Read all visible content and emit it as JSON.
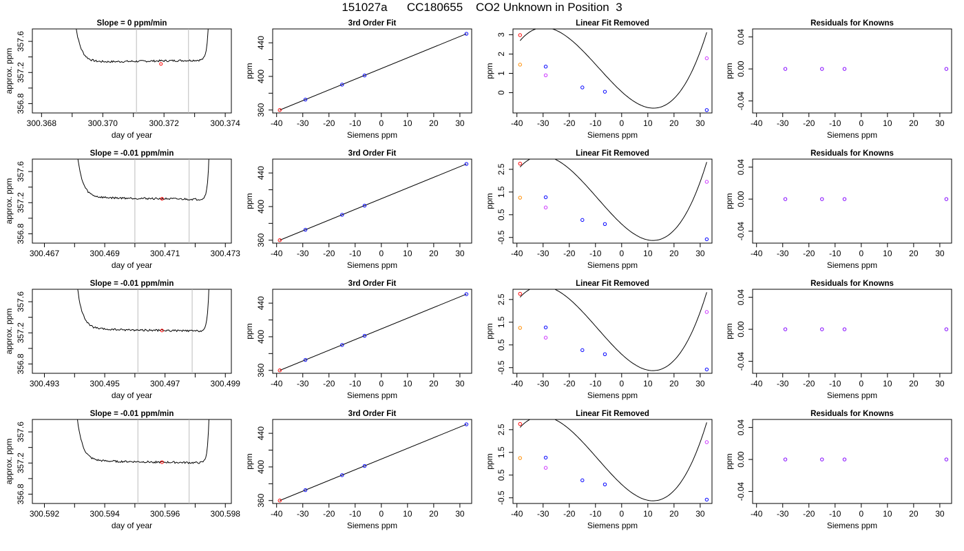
{
  "page": {
    "title": "151027a      CC180655    CO2 Unknown in Position  3"
  },
  "chart_data": [
    {
      "type": "line",
      "title": "Slope =  0  ppm/min",
      "xlabel": "day of year",
      "ylabel": "approx. ppm",
      "xlim": [
        300.3677,
        300.3742
      ],
      "ylim": [
        356.68,
        357.76
      ],
      "xticks": [
        "300.368",
        "300.369",
        "300.370",
        "300.371",
        "300.372",
        "300.373",
        "300.374"
      ],
      "xtick_labels": [
        "300.368",
        "",
        "300.370",
        "",
        "300.372",
        "",
        "300.374"
      ],
      "yticks": [
        "356.8",
        "357.0",
        "357.2",
        "357.4",
        "357.6"
      ],
      "ytick_labels": [
        "356.8",
        "",
        "357.2",
        "",
        "357.6"
      ],
      "vlines": [
        300.3711,
        300.3728
      ],
      "trace": {
        "start": 300.369,
        "end": 300.3735,
        "plateau": 357.33,
        "step": 0.03
      },
      "marker": {
        "x": 300.3719,
        "y": 357.31,
        "color": "#ff0000"
      }
    },
    {
      "type": "scatter",
      "title": "3rd Order Fit",
      "xlabel": "Siemens ppm",
      "ylabel": "ppm",
      "xlim": [
        -41.5,
        34.5
      ],
      "ylim": [
        356.5,
        456.5
      ],
      "xticks": [
        "-40",
        "-30",
        "-20",
        "-10",
        "0",
        "10",
        "20",
        "30"
      ],
      "yticks": [
        "360",
        "380",
        "400",
        "420",
        "440"
      ],
      "ytick_labels": [
        "360",
        "",
        "400",
        "",
        "440"
      ],
      "fit_line": [
        [
          -38.8,
          360.0
        ],
        [
          32.5,
          450.7
        ]
      ],
      "points": [
        {
          "x": -38.8,
          "y": 360.0,
          "color": "#ff0000"
        },
        {
          "x": -29,
          "y": 372.4,
          "color": "#0000ff"
        },
        {
          "x": -15,
          "y": 390.2,
          "color": "#0000ff"
        },
        {
          "x": -6.4,
          "y": 401.1,
          "color": "#0000ff"
        },
        {
          "x": 32.5,
          "y": 450.7,
          "color": "#0000ff"
        }
      ]
    },
    {
      "type": "scatter",
      "title": "Linear Fit Removed",
      "xlabel": "Siemens ppm",
      "ylabel": "ppm",
      "xlim": [
        -41.5,
        34.5
      ],
      "ylim": [
        -1.05,
        3.3
      ],
      "xticks": [
        "-40",
        "-30",
        "-20",
        "-10",
        "0",
        "10",
        "20",
        "30"
      ],
      "yticks": [
        "0",
        "1",
        "2",
        "3"
      ],
      "curve": {
        "coef": [
          0.05,
          -0.1233,
          0.003,
          0.000114
        ],
        "from": -38.8,
        "to": 32.5
      },
      "points": [
        {
          "x": -38.8,
          "y": 2.98,
          "color": "#ff0000"
        },
        {
          "x": -38.8,
          "y": 1.45,
          "color": "#ff8c00"
        },
        {
          "x": -29,
          "y": 1.35,
          "color": "#0000ff"
        },
        {
          "x": -29,
          "y": 0.9,
          "color": "#cc33ff"
        },
        {
          "x": -15,
          "y": 0.27,
          "color": "#0000ff"
        },
        {
          "x": -6.4,
          "y": 0.05,
          "color": "#0000ff"
        },
        {
          "x": 32.5,
          "y": -0.9,
          "color": "#0000ff"
        },
        {
          "x": 32.5,
          "y": 1.78,
          "color": "#cc33ff"
        }
      ]
    },
    {
      "type": "scatter",
      "title": "Residuals for Knowns",
      "xlabel": "Siemens ppm",
      "ylabel": "ppm",
      "xlim": [
        -41.5,
        34.5
      ],
      "ylim": [
        -0.055,
        0.05
      ],
      "xticks": [
        "-40",
        "-30",
        "-20",
        "-10",
        "0",
        "10",
        "20",
        "30"
      ],
      "yticks": [
        "-0.04",
        "0.00",
        "0.04"
      ],
      "points": [
        {
          "x": -29,
          "y": 0,
          "color": "#8000ff"
        },
        {
          "x": -15,
          "y": 0,
          "color": "#8000ff"
        },
        {
          "x": -6.4,
          "y": 0,
          "color": "#8000ff"
        },
        {
          "x": 32.5,
          "y": 0,
          "color": "#8000ff"
        }
      ]
    },
    {
      "type": "line",
      "title": "Slope =  -0.01  ppm/min",
      "xlabel": "day of year",
      "ylabel": "approx. ppm",
      "xlim": [
        300.4666,
        300.4732
      ],
      "ylim": [
        356.68,
        357.76
      ],
      "xticks": [
        "300.467",
        "300.468",
        "300.469",
        "300.470",
        "300.471",
        "300.472",
        "300.473"
      ],
      "xtick_labels": [
        "300.467",
        "",
        "300.469",
        "",
        "300.471",
        "",
        "300.473"
      ],
      "yticks": [
        "356.8",
        "357.0",
        "357.2",
        "357.4",
        "357.6"
      ],
      "ytick_labels": [
        "356.8",
        "",
        "357.2",
        "",
        "357.6"
      ],
      "vlines": [
        300.47,
        300.4718
      ],
      "trace": {
        "start": 300.468,
        "end": 300.4725,
        "plateau": 357.27,
        "step": -0.03
      },
      "marker": {
        "x": 300.4709,
        "y": 357.25,
        "color": "#ff0000"
      }
    },
    {
      "type": "scatter",
      "title": "3rd Order Fit",
      "xlabel": "Siemens ppm",
      "ylabel": "ppm",
      "xlim": [
        -41.5,
        34.5
      ],
      "ylim": [
        356.5,
        456.5
      ],
      "xticks": [
        "-40",
        "-30",
        "-20",
        "-10",
        "0",
        "10",
        "20",
        "30"
      ],
      "yticks": [
        "360",
        "380",
        "400",
        "420",
        "440"
      ],
      "ytick_labels": [
        "360",
        "",
        "400",
        "",
        "440"
      ],
      "fit_line": [
        [
          -38.8,
          360.0
        ],
        [
          32.5,
          450.7
        ]
      ],
      "points": [
        {
          "x": -38.8,
          "y": 360.0,
          "color": "#ff0000"
        },
        {
          "x": -29,
          "y": 372.4,
          "color": "#0000ff"
        },
        {
          "x": -15,
          "y": 390.2,
          "color": "#0000ff"
        },
        {
          "x": -6.4,
          "y": 401.1,
          "color": "#0000ff"
        },
        {
          "x": 32.5,
          "y": 450.7,
          "color": "#0000ff"
        }
      ]
    },
    {
      "type": "scatter",
      "title": "Linear Fit Removed",
      "xlabel": "Siemens ppm",
      "ylabel": "ppm",
      "xlim": [
        -41.5,
        34.5
      ],
      "ylim": [
        -0.75,
        2.95
      ],
      "xticks": [
        "-40",
        "-30",
        "-20",
        "-10",
        "0",
        "10",
        "20",
        "30"
      ],
      "yticks": [
        "-0.5",
        "0.5",
        "1.5",
        "2.5"
      ],
      "curve": {
        "coef": [
          0.09,
          -0.1066,
          0.0027,
          9.74e-05
        ],
        "from": -38.8,
        "to": 32.5
      },
      "points": [
        {
          "x": -38.8,
          "y": 2.75,
          "color": "#ff0000"
        },
        {
          "x": -38.8,
          "y": 1.25,
          "color": "#ff8c00"
        },
        {
          "x": -29,
          "y": 1.27,
          "color": "#0000ff"
        },
        {
          "x": -29,
          "y": 0.82,
          "color": "#cc33ff"
        },
        {
          "x": -15,
          "y": 0.27,
          "color": "#0000ff"
        },
        {
          "x": -6.4,
          "y": 0.09,
          "color": "#0000ff"
        },
        {
          "x": 32.5,
          "y": -0.58,
          "color": "#0000ff"
        },
        {
          "x": 32.5,
          "y": 1.95,
          "color": "#cc33ff"
        }
      ]
    },
    {
      "type": "scatter",
      "title": "Residuals for Knowns",
      "xlabel": "Siemens ppm",
      "ylabel": "ppm",
      "xlim": [
        -41.5,
        34.5
      ],
      "ylim": [
        -0.055,
        0.05
      ],
      "xticks": [
        "-40",
        "-30",
        "-20",
        "-10",
        "0",
        "10",
        "20",
        "30"
      ],
      "yticks": [
        "-0.04",
        "0.00",
        "0.04"
      ],
      "points": [
        {
          "x": -29,
          "y": 0,
          "color": "#8000ff"
        },
        {
          "x": -15,
          "y": 0,
          "color": "#8000ff"
        },
        {
          "x": -6.4,
          "y": 0,
          "color": "#8000ff"
        },
        {
          "x": 32.5,
          "y": 0,
          "color": "#8000ff"
        }
      ]
    },
    {
      "type": "line",
      "title": "Slope =  -0.01  ppm/min",
      "xlabel": "day of year",
      "ylabel": "approx. ppm",
      "xlim": [
        300.4926,
        300.4992
      ],
      "ylim": [
        356.68,
        357.76
      ],
      "xticks": [
        "300.493",
        "300.494",
        "300.495",
        "300.496",
        "300.497",
        "300.498",
        "300.499"
      ],
      "xtick_labels": [
        "300.493",
        "",
        "300.495",
        "",
        "300.497",
        "",
        "300.499"
      ],
      "yticks": [
        "356.8",
        "357.0",
        "357.2",
        "357.4",
        "357.6"
      ],
      "ytick_labels": [
        "356.8",
        "",
        "357.2",
        "",
        "357.6"
      ],
      "vlines": [
        300.4961,
        300.4979
      ],
      "trace": {
        "start": 300.494,
        "end": 300.4985,
        "plateau": 357.25,
        "step": -0.03
      },
      "marker": {
        "x": 300.4969,
        "y": 357.23,
        "color": "#ff0000"
      }
    },
    {
      "type": "scatter",
      "title": "3rd Order Fit",
      "xlabel": "Siemens ppm",
      "ylabel": "ppm",
      "xlim": [
        -41.5,
        34.5
      ],
      "ylim": [
        356.5,
        456.5
      ],
      "xticks": [
        "-40",
        "-30",
        "-20",
        "-10",
        "0",
        "10",
        "20",
        "30"
      ],
      "yticks": [
        "360",
        "380",
        "400",
        "420",
        "440"
      ],
      "ytick_labels": [
        "360",
        "",
        "400",
        "",
        "440"
      ],
      "fit_line": [
        [
          -38.8,
          360.0
        ],
        [
          32.5,
          450.7
        ]
      ],
      "points": [
        {
          "x": -38.8,
          "y": 360.0,
          "color": "#ff0000"
        },
        {
          "x": -29,
          "y": 372.4,
          "color": "#0000ff"
        },
        {
          "x": -15,
          "y": 390.2,
          "color": "#0000ff"
        },
        {
          "x": -6.4,
          "y": 401.1,
          "color": "#0000ff"
        },
        {
          "x": 32.5,
          "y": 450.7,
          "color": "#0000ff"
        }
      ]
    },
    {
      "type": "scatter",
      "title": "Linear Fit Removed",
      "xlabel": "Siemens ppm",
      "ylabel": "ppm",
      "xlim": [
        -41.5,
        34.5
      ],
      "ylim": [
        -0.75,
        2.95
      ],
      "xticks": [
        "-40",
        "-30",
        "-20",
        "-10",
        "0",
        "10",
        "20",
        "30"
      ],
      "yticks": [
        "-0.5",
        "0.5",
        "1.5",
        "2.5"
      ],
      "curve": {
        "coef": [
          0.09,
          -0.1066,
          0.0027,
          9.74e-05
        ],
        "from": -38.8,
        "to": 32.5
      },
      "points": [
        {
          "x": -38.8,
          "y": 2.75,
          "color": "#ff0000"
        },
        {
          "x": -38.8,
          "y": 1.25,
          "color": "#ff8c00"
        },
        {
          "x": -29,
          "y": 1.27,
          "color": "#0000ff"
        },
        {
          "x": -29,
          "y": 0.82,
          "color": "#cc33ff"
        },
        {
          "x": -15,
          "y": 0.27,
          "color": "#0000ff"
        },
        {
          "x": -6.4,
          "y": 0.09,
          "color": "#0000ff"
        },
        {
          "x": 32.5,
          "y": -0.58,
          "color": "#0000ff"
        },
        {
          "x": 32.5,
          "y": 1.95,
          "color": "#cc33ff"
        }
      ]
    },
    {
      "type": "scatter",
      "title": "Residuals for Knowns",
      "xlabel": "Siemens ppm",
      "ylabel": "ppm",
      "xlim": [
        -41.5,
        34.5
      ],
      "ylim": [
        -0.055,
        0.05
      ],
      "xticks": [
        "-40",
        "-30",
        "-20",
        "-10",
        "0",
        "10",
        "20",
        "30"
      ],
      "yticks": [
        "-0.04",
        "0.00",
        "0.04"
      ],
      "points": [
        {
          "x": -29,
          "y": 0,
          "color": "#8000ff"
        },
        {
          "x": -15,
          "y": 0,
          "color": "#8000ff"
        },
        {
          "x": -6.4,
          "y": 0,
          "color": "#8000ff"
        },
        {
          "x": 32.5,
          "y": 0,
          "color": "#8000ff"
        }
      ]
    },
    {
      "type": "line",
      "title": "Slope =  -0.01  ppm/min",
      "xlabel": "day of year",
      "ylabel": "approx. ppm",
      "xlim": [
        300.5916,
        300.5982
      ],
      "ylim": [
        356.68,
        357.76
      ],
      "xticks": [
        "300.592",
        "300.593",
        "300.594",
        "300.595",
        "300.596",
        "300.597",
        "300.598"
      ],
      "xtick_labels": [
        "300.592",
        "",
        "300.594",
        "",
        "300.596",
        "",
        "300.598"
      ],
      "yticks": [
        "356.8",
        "357.0",
        "357.2",
        "357.4",
        "357.6"
      ],
      "ytick_labels": [
        "356.8",
        "",
        "357.2",
        "",
        "357.6"
      ],
      "vlines": [
        300.5951,
        300.5968
      ],
      "trace": {
        "start": 300.593,
        "end": 300.5975,
        "plateau": 357.23,
        "step": -0.03
      },
      "marker": {
        "x": 300.5959,
        "y": 357.21,
        "color": "#ff0000"
      }
    },
    {
      "type": "scatter",
      "title": "3rd Order Fit",
      "xlabel": "Siemens ppm",
      "ylabel": "ppm",
      "xlim": [
        -41.5,
        34.5
      ],
      "ylim": [
        356.5,
        456.5
      ],
      "xticks": [
        "-40",
        "-30",
        "-20",
        "-10",
        "0",
        "10",
        "20",
        "30"
      ],
      "yticks": [
        "360",
        "380",
        "400",
        "420",
        "440"
      ],
      "ytick_labels": [
        "360",
        "",
        "400",
        "",
        "440"
      ],
      "fit_line": [
        [
          -38.8,
          360.0
        ],
        [
          32.5,
          450.7
        ]
      ],
      "points": [
        {
          "x": -38.8,
          "y": 360.0,
          "color": "#ff0000"
        },
        {
          "x": -29,
          "y": 372.4,
          "color": "#0000ff"
        },
        {
          "x": -15,
          "y": 390.2,
          "color": "#0000ff"
        },
        {
          "x": -6.4,
          "y": 401.1,
          "color": "#0000ff"
        },
        {
          "x": 32.5,
          "y": 450.7,
          "color": "#0000ff"
        }
      ]
    },
    {
      "type": "scatter",
      "title": "Linear Fit Removed",
      "xlabel": "Siemens ppm",
      "ylabel": "ppm",
      "xlim": [
        -41.5,
        34.5
      ],
      "ylim": [
        -0.75,
        2.95
      ],
      "xticks": [
        "-40",
        "-30",
        "-20",
        "-10",
        "0",
        "10",
        "20",
        "30"
      ],
      "yticks": [
        "-0.5",
        "0.5",
        "1.5",
        "2.5"
      ],
      "curve": {
        "coef": [
          0.09,
          -0.1066,
          0.0027,
          9.74e-05
        ],
        "from": -38.8,
        "to": 32.5
      },
      "points": [
        {
          "x": -38.8,
          "y": 2.75,
          "color": "#ff0000"
        },
        {
          "x": -38.8,
          "y": 1.25,
          "color": "#ff8c00"
        },
        {
          "x": -29,
          "y": 1.27,
          "color": "#0000ff"
        },
        {
          "x": -29,
          "y": 0.82,
          "color": "#cc33ff"
        },
        {
          "x": -15,
          "y": 0.27,
          "color": "#0000ff"
        },
        {
          "x": -6.4,
          "y": 0.09,
          "color": "#0000ff"
        },
        {
          "x": 32.5,
          "y": -0.58,
          "color": "#0000ff"
        },
        {
          "x": 32.5,
          "y": 1.95,
          "color": "#cc33ff"
        }
      ]
    },
    {
      "type": "scatter",
      "title": "Residuals for Knowns",
      "xlabel": "Siemens ppm",
      "ylabel": "ppm",
      "xlim": [
        -41.5,
        34.5
      ],
      "ylim": [
        -0.055,
        0.05
      ],
      "xticks": [
        "-40",
        "-30",
        "-20",
        "-10",
        "0",
        "10",
        "20",
        "30"
      ],
      "yticks": [
        "-0.04",
        "0.00",
        "0.04"
      ],
      "points": [
        {
          "x": -29,
          "y": 0,
          "color": "#8000ff"
        },
        {
          "x": -15,
          "y": 0,
          "color": "#8000ff"
        },
        {
          "x": -6.4,
          "y": 0,
          "color": "#8000ff"
        },
        {
          "x": 32.5,
          "y": 0,
          "color": "#8000ff"
        }
      ]
    }
  ]
}
